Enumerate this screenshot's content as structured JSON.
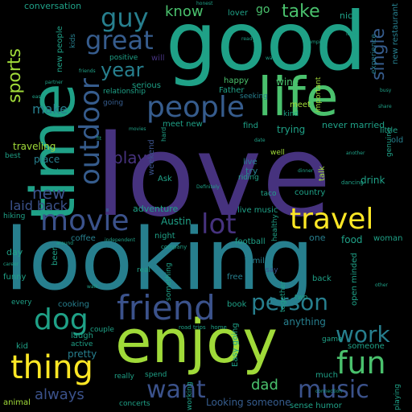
{
  "palette": {
    "background": "#000000",
    "purple": "#46327e",
    "indigo": "#3b528b",
    "blue": "#365c8d",
    "teal": "#277f8e",
    "sea": "#1fa187",
    "green": "#4ac16d",
    "lime": "#a0da39",
    "yellow": "#fde725"
  },
  "words": [
    {
      "text": "love"
    },
    {
      "text": "looking"
    },
    {
      "text": "good"
    },
    {
      "text": "time"
    },
    {
      "text": "enjoy"
    },
    {
      "text": "life"
    },
    {
      "text": "friend"
    },
    {
      "text": "travel"
    },
    {
      "text": "thing"
    },
    {
      "text": "people"
    },
    {
      "text": "movie"
    },
    {
      "text": "outdoor"
    },
    {
      "text": "dog"
    },
    {
      "text": "fun"
    },
    {
      "text": "guy"
    },
    {
      "text": "great"
    },
    {
      "text": "music"
    },
    {
      "text": "work"
    },
    {
      "text": "want"
    },
    {
      "text": "person"
    },
    {
      "text": "lot"
    },
    {
      "text": "sports"
    },
    {
      "text": "year"
    },
    {
      "text": "take"
    },
    {
      "text": "know"
    },
    {
      "text": "single"
    },
    {
      "text": "always"
    },
    {
      "text": "laid back"
    },
    {
      "text": "make"
    },
    {
      "text": "play"
    },
    {
      "text": "new"
    },
    {
      "text": "dad"
    },
    {
      "text": "traveling"
    },
    {
      "text": "conversation"
    },
    {
      "text": "go"
    },
    {
      "text": "lover"
    },
    {
      "text": "nice"
    },
    {
      "text": "new restaurant"
    },
    {
      "text": "kids"
    },
    {
      "text": "new people"
    },
    {
      "text": "positive"
    },
    {
      "text": "will"
    },
    {
      "text": "serious"
    },
    {
      "text": "happy"
    },
    {
      "text": "wine"
    },
    {
      "text": "relationship"
    },
    {
      "text": "Father"
    },
    {
      "text": "seeking"
    },
    {
      "text": "going"
    },
    {
      "text": "meet new"
    },
    {
      "text": "meet"
    },
    {
      "text": "kind"
    },
    {
      "text": "find"
    },
    {
      "text": "important"
    },
    {
      "text": "trying"
    },
    {
      "text": "never married"
    },
    {
      "text": "little"
    },
    {
      "text": "experience"
    },
    {
      "text": "place"
    },
    {
      "text": "best"
    },
    {
      "text": "live"
    },
    {
      "text": "riding"
    },
    {
      "text": "well"
    },
    {
      "text": "try"
    },
    {
      "text": "talk"
    },
    {
      "text": "drink"
    },
    {
      "text": "genuine"
    },
    {
      "text": "old"
    },
    {
      "text": "Ask"
    },
    {
      "text": "weekend"
    },
    {
      "text": "taco"
    },
    {
      "text": "country"
    },
    {
      "text": "hiking"
    },
    {
      "text": "adventure"
    },
    {
      "text": "live music"
    },
    {
      "text": "Austin"
    },
    {
      "text": "night"
    },
    {
      "text": "coffee"
    },
    {
      "text": "football"
    },
    {
      "text": "one"
    },
    {
      "text": "food"
    },
    {
      "text": "woman"
    },
    {
      "text": "day"
    },
    {
      "text": "beer"
    },
    {
      "text": "family"
    },
    {
      "text": "say"
    },
    {
      "text": "funny"
    },
    {
      "text": "real"
    },
    {
      "text": "free"
    },
    {
      "text": "open minded"
    },
    {
      "text": "back"
    },
    {
      "text": "every"
    },
    {
      "text": "cooking"
    },
    {
      "text": "book"
    },
    {
      "text": "anything"
    },
    {
      "text": "two"
    },
    {
      "text": "kid"
    },
    {
      "text": "laugh"
    },
    {
      "text": "couple"
    },
    {
      "text": "active"
    },
    {
      "text": "pretty"
    },
    {
      "text": "someone"
    },
    {
      "text": "game"
    },
    {
      "text": "much"
    },
    {
      "text": "Easy going"
    },
    {
      "text": "together"
    },
    {
      "text": "really"
    },
    {
      "text": "spend"
    },
    {
      "text": "working"
    },
    {
      "text": "Looking someone"
    },
    {
      "text": "sense humor"
    },
    {
      "text": "playing"
    },
    {
      "text": "animal"
    },
    {
      "text": "concerts"
    },
    {
      "text": "road trips"
    },
    {
      "text": "home"
    },
    {
      "text": "healthy"
    },
    {
      "text": "something"
    },
    {
      "text": "honest"
    },
    {
      "text": "ready"
    },
    {
      "text": "friends"
    },
    {
      "text": "hard"
    },
    {
      "text": "company"
    },
    {
      "text": "movies"
    },
    {
      "text": "loyal"
    },
    {
      "text": "busy"
    },
    {
      "text": "easy"
    },
    {
      "text": "fit"
    },
    {
      "text": "cook"
    },
    {
      "text": "dinner"
    },
    {
      "text": "camping"
    },
    {
      "text": "walk"
    },
    {
      "text": "partner"
    },
    {
      "text": "date"
    },
    {
      "text": "dancing"
    },
    {
      "text": "another"
    },
    {
      "text": "Definitely"
    },
    {
      "text": "water"
    },
    {
      "text": "career"
    },
    {
      "text": "around"
    },
    {
      "text": "independent"
    },
    {
      "text": "other"
    },
    {
      "text": "connection"
    },
    {
      "text": "share"
    }
  ]
}
